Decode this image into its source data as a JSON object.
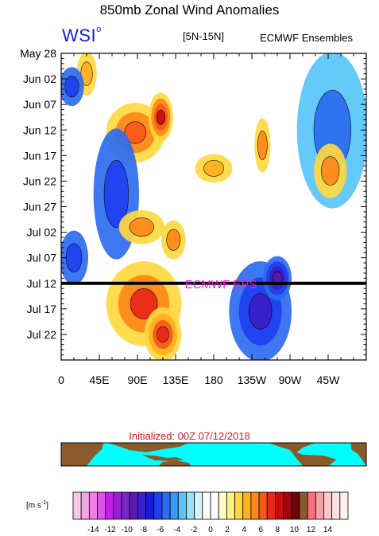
{
  "title": "850mb Zonal Wind Anomalies",
  "logo": {
    "text": "WSI",
    "mark": "o"
  },
  "band_label": "[5N-15N]",
  "source_label": "ECMWF Ensembles",
  "forecast_label": "ECMWF EPS",
  "initialized": "Initialized: 00Z 07/12/2018",
  "units": {
    "base": "[m s",
    "exp": "-1",
    "close": "]"
  },
  "colors": {
    "land": "#8b5a2b",
    "ocean": "#00ffff",
    "forecast_label": "#e020e0",
    "initialized": "#e0141e",
    "logo": "#1a1ad6"
  },
  "chart_data": {
    "type": "heatmap",
    "title": "850mb Zonal Wind Anomalies",
    "subtitle": "[5N-15N]",
    "xlabel": "",
    "ylabel": "",
    "x_ticks": [
      "0",
      "45E",
      "90E",
      "135E",
      "180",
      "135W",
      "90W",
      "45W"
    ],
    "x_tick_values": [
      0,
      45,
      90,
      135,
      180,
      225,
      270,
      315
    ],
    "x_range": [
      0,
      360
    ],
    "y_ticks": [
      "May 28",
      "Jun 02",
      "Jun 07",
      "Jun 12",
      "Jun 17",
      "Jun 22",
      "Jun 27",
      "Jul 02",
      "Jul 07",
      "Jul 12",
      "Jul 17",
      "Jul 22"
    ],
    "y_tick_days": [
      0,
      5,
      10,
      15,
      20,
      25,
      30,
      35,
      40,
      45,
      50,
      55
    ],
    "y_range": [
      0,
      60
    ],
    "forecast_start_day": 45,
    "colorbar": {
      "labels": [
        "-14",
        "-12",
        "-10",
        "-8",
        "-6",
        "-4",
        "-2",
        "0",
        "2",
        "4",
        "6",
        "8",
        "10",
        "12",
        "14"
      ],
      "colors": [
        "#f8c8e8",
        "#f4a8e4",
        "#f080e8",
        "#e050e8",
        "#c020e8",
        "#9a20d8",
        "#7828c8",
        "#5a1ab0",
        "#3a1ec8",
        "#1a1ad8",
        "#2040f0",
        "#2c6cf0",
        "#3898f8",
        "#58c4f8",
        "#9ce0f8",
        "#d4f4fc",
        "#ffffff",
        "#ffffff",
        "#fffcc8",
        "#fff080",
        "#ffd840",
        "#ffb020",
        "#ff8818",
        "#f85818",
        "#e82818",
        "#c80c10",
        "#a0080c",
        "#70060a",
        "#8b5a2b",
        "#f87080",
        "#f8a0a8",
        "#fcc8cc",
        "#fde0e0",
        "#fff0f0"
      ]
    },
    "anomaly_regions": [
      {
        "sign": "positive",
        "lon": [
          20,
          40
        ],
        "day": [
          0,
          8
        ],
        "value": 5
      },
      {
        "sign": "negative",
        "lon": [
          0,
          25
        ],
        "day": [
          3,
          10
        ],
        "value": -6
      },
      {
        "sign": "positive",
        "lon": [
          55,
          120
        ],
        "day": [
          10,
          21
        ],
        "value": 9
      },
      {
        "sign": "positive",
        "lon": [
          105,
          130
        ],
        "day": [
          8,
          17
        ],
        "value": 12
      },
      {
        "sign": "negative",
        "lon": [
          40,
          90
        ],
        "day": [
          15,
          40
        ],
        "value": -5
      },
      {
        "sign": "positive",
        "lon": [
          160,
          200
        ],
        "day": [
          20,
          25
        ],
        "value": 5
      },
      {
        "sign": "positive",
        "lon": [
          230,
          245
        ],
        "day": [
          13,
          23
        ],
        "value": 7
      },
      {
        "sign": "positive",
        "lon": [
          70,
          120
        ],
        "day": [
          31,
          37
        ],
        "value": 7
      },
      {
        "sign": "positive",
        "lon": [
          120,
          145
        ],
        "day": [
          33,
          40
        ],
        "value": 6
      },
      {
        "sign": "positive",
        "lon": [
          55,
          140
        ],
        "day": [
          41,
          57
        ],
        "value": 10
      },
      {
        "sign": "positive",
        "lon": [
          100,
          140
        ],
        "day": [
          50,
          60
        ],
        "value": 11
      },
      {
        "sign": "negative",
        "lon": [
          200,
          270
        ],
        "day": [
          41,
          60
        ],
        "value": -9
      },
      {
        "sign": "negative",
        "lon": [
          240,
          270
        ],
        "day": [
          40,
          48
        ],
        "value": -12
      },
      {
        "sign": "negative",
        "lon": [
          280,
          360
        ],
        "day": [
          0,
          30
        ],
        "value": -4
      },
      {
        "sign": "positive",
        "lon": [
          300,
          335
        ],
        "day": [
          18,
          28
        ],
        "value": 6
      },
      {
        "sign": "negative",
        "lon": [
          0,
          30
        ],
        "day": [
          35,
          45
        ],
        "value": -6
      }
    ]
  }
}
